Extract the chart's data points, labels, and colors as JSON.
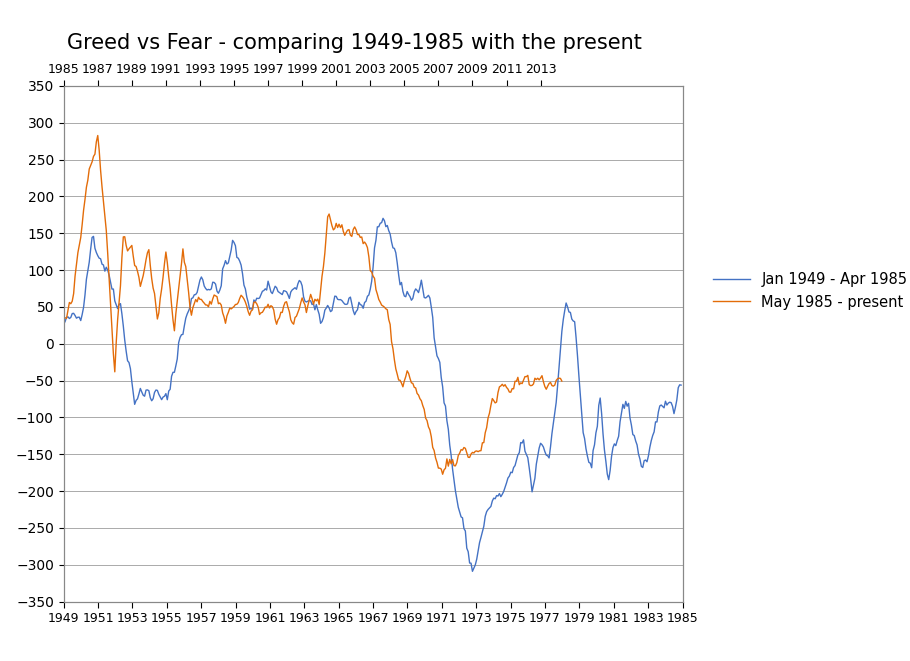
{
  "title": "Greed vs Fear - comparing 1949-1985 with the present",
  "title_fontsize": 15,
  "blue_label": "Jan 1949 - Apr 1985",
  "orange_label": "May 1985 - present",
  "blue_color": "#4472C4",
  "orange_color": "#E36C09",
  "ylim": [
    -350,
    350
  ],
  "ytick_step": 50,
  "bottom_xtick_labels": [
    "1949",
    "1951",
    "1953",
    "1955",
    "1957",
    "1959",
    "1961",
    "1963",
    "1965",
    "1967",
    "1969",
    "1971",
    "1973",
    "1975",
    "1977",
    "1979",
    "1981",
    "1983",
    "1985"
  ],
  "top_xtick_labels": [
    "1985",
    "1987",
    "1989",
    "1991",
    "1993",
    "1995",
    "1997",
    "1999",
    "2001",
    "2003",
    "2005",
    "2007",
    "2009",
    "2011",
    "2013"
  ],
  "line_width": 1.0,
  "grid_color": "#AAAAAA",
  "background_color": "#FFFFFF",
  "total_months": 436,
  "orange_months": 352,
  "seed": 42
}
